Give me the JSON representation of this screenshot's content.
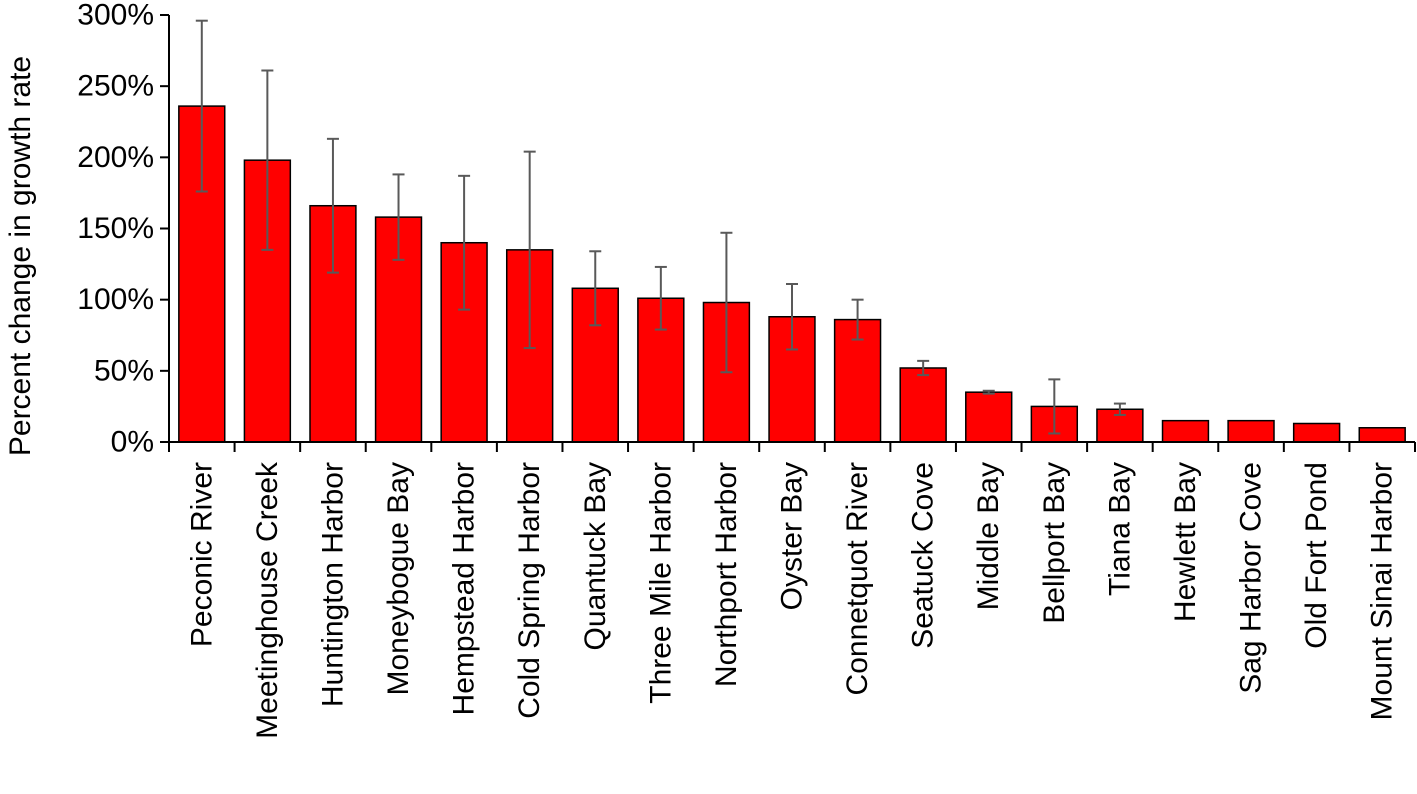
{
  "chart_data": {
    "type": "bar",
    "title": "",
    "xlabel": "",
    "ylabel": "Percent change in growth rate",
    "ylim": [
      0,
      300
    ],
    "yticks": [
      "0%",
      "50%",
      "100%",
      "150%",
      "200%",
      "250%",
      "300%"
    ],
    "ytick_values": [
      0,
      50,
      100,
      150,
      200,
      250,
      300
    ],
    "grid": false,
    "legend": "none",
    "bar_color": "#ff0000",
    "error_bar_color": "#595959",
    "categories": [
      "Peconic River",
      "Meetinghouse Creek",
      "Huntington Harbor",
      "Moneybogue Bay",
      "Hempstead Harbor",
      "Cold Spring Harbor",
      "Quantuck Bay",
      "Three Mile Harbor",
      "Northport Harbor",
      "Oyster Bay",
      "Connetquot River",
      "Seatuck Cove",
      "Middle Bay",
      "Bellport Bay",
      "Tiana Bay",
      "Hewlett Bay",
      "Sag Harbor Cove",
      "Old Fort Pond",
      "Mount Sinai Harbor"
    ],
    "values": [
      236,
      198,
      166,
      158,
      140,
      135,
      108,
      101,
      98,
      88,
      86,
      52,
      35,
      25,
      23,
      15,
      15,
      13,
      10
    ],
    "errors": [
      60,
      63,
      47,
      30,
      47,
      69,
      26,
      22,
      49,
      23,
      14,
      5,
      1,
      19,
      4,
      0,
      0,
      0,
      0
    ]
  }
}
